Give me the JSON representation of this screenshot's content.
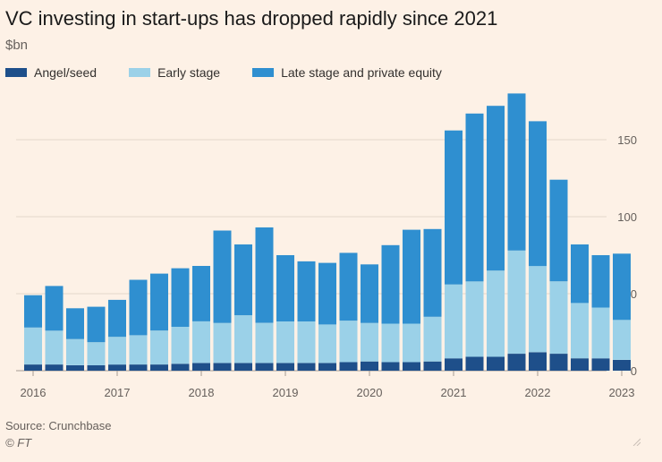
{
  "title": "VC investing in start-ups has dropped rapidly since 2021",
  "unit_label": "$bn",
  "legend": [
    {
      "label": "Angel/seed",
      "color": "#1e4f8a"
    },
    {
      "label": "Early stage",
      "color": "#9bd1e8"
    },
    {
      "label": "Late stage and private equity",
      "color": "#2f8fd0"
    }
  ],
  "source": "Source: Crunchbase",
  "copyright": "© FT",
  "chart_data": {
    "type": "bar",
    "stacked": true,
    "title": "VC investing in start-ups has dropped rapidly since 2021",
    "ylabel": "$bn",
    "ylim": [
      0,
      180
    ],
    "yticks": [
      0,
      50,
      100,
      150
    ],
    "x_tick_labels": [
      {
        "label": "2016",
        "index": 0
      },
      {
        "label": "2017",
        "index": 4
      },
      {
        "label": "2018",
        "index": 8
      },
      {
        "label": "2019",
        "index": 12
      },
      {
        "label": "2020",
        "index": 16
      },
      {
        "label": "2021",
        "index": 20
      },
      {
        "label": "2022",
        "index": 24
      },
      {
        "label": "2023",
        "index": 28
      }
    ],
    "categories": [
      "2016 Q1",
      "2016 Q2",
      "2016 Q3",
      "2016 Q4",
      "2017 Q1",
      "2017 Q2",
      "2017 Q3",
      "2017 Q4",
      "2018 Q1",
      "2018 Q2",
      "2018 Q3",
      "2018 Q4",
      "2019 Q1",
      "2019 Q2",
      "2019 Q3",
      "2019 Q4",
      "2020 Q1",
      "2020 Q2",
      "2020 Q3",
      "2020 Q4",
      "2021 Q1",
      "2021 Q2",
      "2021 Q3",
      "2021 Q4",
      "2022 Q1",
      "2022 Q2",
      "2022 Q3",
      "2022 Q4",
      "2023 Q1"
    ],
    "series": [
      {
        "name": "Angel/seed",
        "color": "#1e4f8a",
        "values": [
          4,
          4,
          3.5,
          3.5,
          4,
          4,
          4,
          4.5,
          5,
          5,
          5,
          5,
          5,
          5,
          5,
          5.5,
          6,
          5.5,
          5.5,
          6,
          8,
          9,
          9,
          11,
          12,
          11,
          8,
          8,
          7
        ]
      },
      {
        "name": "Early stage",
        "color": "#9bd1e8",
        "values": [
          24,
          22,
          17,
          15,
          18,
          19,
          22,
          24,
          27,
          26,
          31,
          26,
          27,
          27,
          25,
          27,
          25,
          25,
          25,
          29,
          48,
          49,
          56,
          67,
          56,
          47,
          36,
          33,
          26
        ]
      },
      {
        "name": "Late stage and private equity",
        "color": "#2f8fd0",
        "values": [
          21,
          29,
          20,
          23,
          24,
          36,
          37,
          38,
          36,
          60,
          46,
          62,
          43,
          39,
          40,
          44,
          38,
          51,
          61,
          57,
          100,
          109,
          107,
          102,
          94,
          66,
          38,
          34,
          43
        ]
      }
    ],
    "grid": true,
    "legend_position": "top-left"
  }
}
